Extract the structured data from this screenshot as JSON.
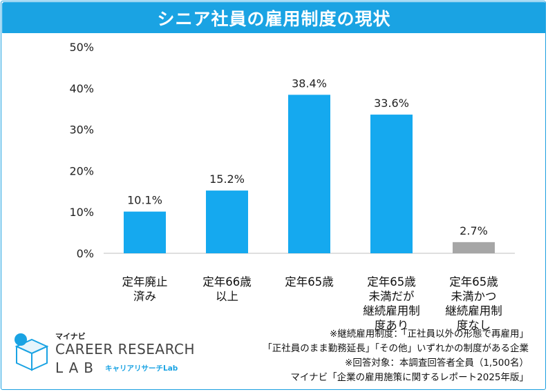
{
  "header": {
    "title": "シニア社員の雇用制度の現状"
  },
  "chart_data": {
    "type": "bar",
    "title": "シニア社員の雇用制度の現状",
    "categories": [
      [
        "定年廃止",
        "済み"
      ],
      [
        "定年66歳",
        "以上"
      ],
      [
        "定年65歳"
      ],
      [
        "定年65歳",
        "未満だが",
        "継続雇用制",
        "度あり"
      ],
      [
        "定年65歳",
        "未満かつ",
        "継続雇用制",
        "度なし"
      ]
    ],
    "values": [
      10.1,
      15.2,
      38.4,
      33.6,
      2.7
    ],
    "value_labels": [
      "10.1%",
      "15.2%",
      "38.4%",
      "33.6%",
      "2.7%"
    ],
    "bar_colors": [
      "#15a9ef",
      "#15a9ef",
      "#15a9ef",
      "#15a9ef",
      "#a6a6a6"
    ],
    "ylim": [
      0,
      50
    ],
    "yticks": [
      "0%",
      "10%",
      "20%",
      "30%",
      "40%",
      "50%"
    ],
    "xlabel": "",
    "ylabel": "",
    "grid": false
  },
  "footnotes": [
    "※継続雇用制度：「正社員以外の形態で再雇用」",
    "「正社員のまま勤務延長」「その他」いずれかの制度がある企業",
    "※回答対象：本調査回答者全員（1,500名）",
    "マイナビ「企業の雇用施策に関するレポート2025年版」"
  ],
  "logo": {
    "brand": "マイナビ",
    "line1": "CAREER RESEARCH",
    "line2": "LAB",
    "sub": "キャリアリサーチLab"
  },
  "colors": {
    "accent": "#1aa3e3",
    "bar": "#15a9ef",
    "bar_muted": "#a6a6a6"
  }
}
